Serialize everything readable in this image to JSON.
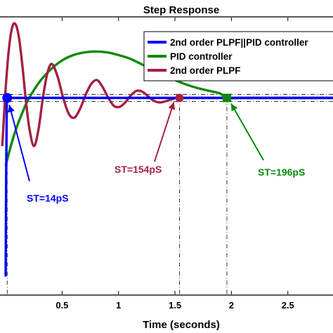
{
  "chart_data": {
    "type": "line",
    "title": "Step Response",
    "xlabel": "Time (seconds)",
    "ylabel": "",
    "xlim": [
      -0.05,
      2.9
    ],
    "ylim": [
      -0.1,
      1.45
    ],
    "xticks": [
      0.5,
      1,
      1.5,
      2,
      2.5
    ],
    "xtick_labels": [
      "0.5",
      "1",
      "1.5",
      "2",
      "2.5"
    ],
    "grid": false,
    "legend": {
      "position": "top-right",
      "entries": [
        {
          "label": "2nd order PLPF||PID controller",
          "color": "#0000ff"
        },
        {
          "label": "PID controller",
          "color": "#0a8a0a"
        },
        {
          "label": "2nd order PLPF",
          "color": "#a3213f"
        }
      ]
    },
    "reference_band": {
      "upper": 1.02,
      "lower": 0.98
    },
    "series": [
      {
        "name": "2nd order PLPF||PID controller",
        "color": "#0000ff",
        "x": [
          0,
          0.005,
          0.01,
          0.014,
          0.05,
          0.3,
          1.0,
          2.0,
          2.9
        ],
        "y": [
          0.0,
          0.6,
          0.97,
          1.0,
          1.0,
          1.0,
          1.0,
          1.0,
          1.0
        ]
      },
      {
        "name": "PID controller",
        "color": "#0a8a0a",
        "x": [
          0,
          0.05,
          0.1,
          0.15,
          0.2,
          0.3,
          0.4,
          0.5,
          0.6,
          0.7,
          0.8,
          0.9,
          1.0,
          1.1,
          1.2,
          1.3,
          1.4,
          1.5,
          1.6,
          1.7,
          1.8,
          1.9,
          1.96,
          2.1,
          2.3,
          2.6,
          2.9
        ],
        "y": [
          0.62,
          0.74,
          0.84,
          0.92,
          0.99,
          1.09,
          1.16,
          1.21,
          1.24,
          1.255,
          1.26,
          1.255,
          1.24,
          1.22,
          1.19,
          1.16,
          1.13,
          1.1,
          1.075,
          1.055,
          1.04,
          1.025,
          1.0,
          1.0,
          1.0,
          1.0,
          1.0
        ]
      },
      {
        "name": "2nd order PLPF",
        "color": "#a3213f",
        "x": [
          -0.03,
          0.0,
          0.03,
          0.06,
          0.09,
          0.12,
          0.15,
          0.18,
          0.21,
          0.25,
          0.29,
          0.33,
          0.37,
          0.41,
          0.46,
          0.51,
          0.56,
          0.61,
          0.66,
          0.71,
          0.76,
          0.81,
          0.86,
          0.91,
          0.96,
          1.01,
          1.06,
          1.11,
          1.16,
          1.21,
          1.26,
          1.31,
          1.36,
          1.41,
          1.46,
          1.51,
          1.54,
          1.6,
          1.7,
          1.8,
          2.0,
          2.3,
          2.9
        ],
        "y": [
          0.73,
          1.05,
          1.28,
          1.4,
          1.41,
          1.33,
          1.17,
          0.98,
          0.83,
          0.73,
          0.82,
          1.0,
          1.14,
          1.19,
          1.12,
          1.0,
          0.91,
          0.89,
          0.94,
          1.02,
          1.08,
          1.1,
          1.06,
          1.0,
          0.955,
          0.95,
          0.975,
          1.015,
          1.04,
          1.035,
          1.01,
          0.985,
          0.975,
          0.98,
          0.99,
          1.0,
          1.0,
          1.0,
          1.0,
          1.0,
          1.0,
          1.0,
          1.0
        ]
      }
    ],
    "annotations": [
      {
        "text": "ST=14pS",
        "x": 0.014,
        "y": 1.0,
        "color": "#0000ff"
      },
      {
        "text": "ST=154pS",
        "x": 1.54,
        "y": 1.0,
        "color": "#a3213f"
      },
      {
        "text": "ST=196pS",
        "x": 1.96,
        "y": 1.0,
        "color": "#0a8a0a"
      }
    ]
  }
}
